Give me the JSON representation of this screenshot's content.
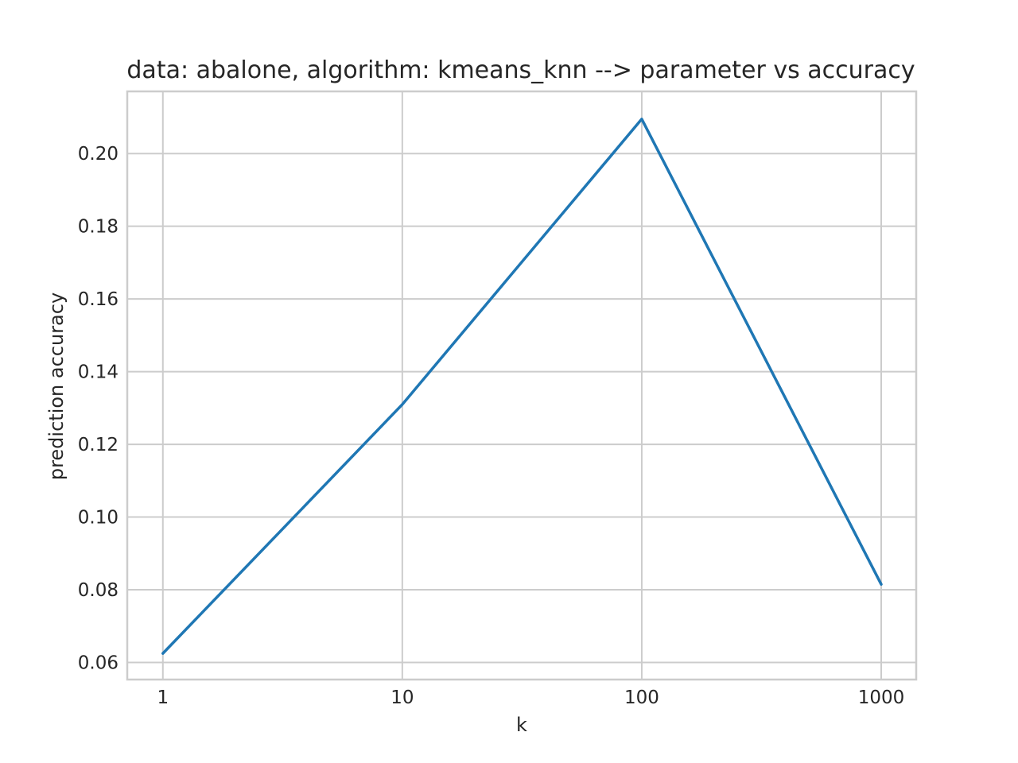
{
  "chart_data": {
    "type": "line",
    "title": "data: abalone, algorithm: kmeans_knn --> parameter vs accuracy",
    "xlabel": "k",
    "ylabel": "prediction accuracy",
    "xscale": "log",
    "x": [
      1,
      10,
      100,
      1000
    ],
    "xticks": [
      1,
      10,
      100,
      1000
    ],
    "xtick_labels": [
      "1",
      "10",
      "100",
      "1000"
    ],
    "xlim": [
      0.71,
      1400
    ],
    "yticks": [
      0.06,
      0.08,
      0.1,
      0.12,
      0.14,
      0.16,
      0.18,
      0.2
    ],
    "ytick_labels": [
      "0.06",
      "0.08",
      "0.10",
      "0.12",
      "0.14",
      "0.16",
      "0.18",
      "0.20"
    ],
    "ylim": [
      0.0553,
      0.2171
    ],
    "grid": true,
    "series": [
      {
        "values": [
          0.0625,
          0.131,
          0.2095,
          0.0815
        ],
        "color": "#1f77b4"
      }
    ]
  }
}
